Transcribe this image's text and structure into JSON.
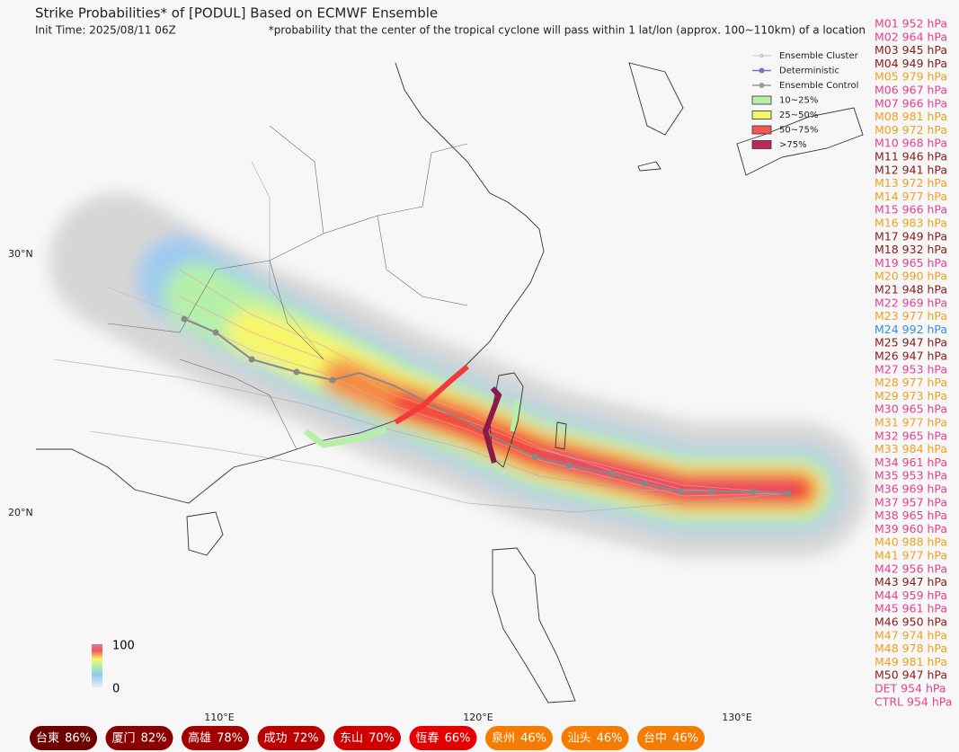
{
  "header": {
    "title": "Strike Probabilities* of [PODUL] Based on ECMWF Ensemble",
    "init_time": "Init Time: 2025/08/11 06Z",
    "note": "*probability that the center of the tropical cyclone will pass within 1 lat/lon (approx. 100~110km) of a location"
  },
  "legend": {
    "items": [
      {
        "label": "Ensemble Cluster",
        "kind": "cluster"
      },
      {
        "label": "Deterministic",
        "kind": "det"
      },
      {
        "label": "Ensemble Control",
        "kind": "ctrl"
      },
      {
        "label": "10~25%",
        "kind": "box",
        "color": "#b6f0a8"
      },
      {
        "label": "25~50%",
        "kind": "box",
        "color": "#f6f66a"
      },
      {
        "label": "50~75%",
        "kind": "box",
        "color": "#f25a50"
      },
      {
        "label": ">75%",
        "kind": "box",
        "color": "#c0285a"
      }
    ]
  },
  "axes": {
    "lat_labels": [
      "30°N",
      "20°N"
    ],
    "lon_labels": [
      "110°E",
      "120°E",
      "130°E"
    ]
  },
  "colorbar": {
    "max_label": "100",
    "min_label": "0"
  },
  "members": [
    {
      "label": "M01 952 hPa",
      "color": "#e8408f"
    },
    {
      "label": "M02 964 hPa",
      "color": "#e8408f"
    },
    {
      "label": "M03 945 hPa",
      "color": "#8b1a1a"
    },
    {
      "label": "M04 949 hPa",
      "color": "#8b1a1a"
    },
    {
      "label": "M05 979 hPa",
      "color": "#f0a020"
    },
    {
      "label": "M06 967 hPa",
      "color": "#e8408f"
    },
    {
      "label": "M07 966 hPa",
      "color": "#e8408f"
    },
    {
      "label": "M08 981 hPa",
      "color": "#f0a020"
    },
    {
      "label": "M09 972 hPa",
      "color": "#f0a020"
    },
    {
      "label": "M10 968 hPa",
      "color": "#e8408f"
    },
    {
      "label": "M11 946 hPa",
      "color": "#8b1a1a"
    },
    {
      "label": "M12 941 hPa",
      "color": "#8b1a1a"
    },
    {
      "label": "M13 972 hPa",
      "color": "#f0a020"
    },
    {
      "label": "M14 977 hPa",
      "color": "#f0a020"
    },
    {
      "label": "M15 966 hPa",
      "color": "#e8408f"
    },
    {
      "label": "M16 983 hPa",
      "color": "#f0a020"
    },
    {
      "label": "M17 949 hPa",
      "color": "#8b1a1a"
    },
    {
      "label": "M18 932 hPa",
      "color": "#8b1a1a"
    },
    {
      "label": "M19 965 hPa",
      "color": "#e8408f"
    },
    {
      "label": "M20 990 hPa",
      "color": "#f0a020"
    },
    {
      "label": "M21 948 hPa",
      "color": "#8b1a1a"
    },
    {
      "label": "M22 969 hPa",
      "color": "#e8408f"
    },
    {
      "label": "M23 977 hPa",
      "color": "#f0a020"
    },
    {
      "label": "M24 992 hPa",
      "color": "#3a8ee6"
    },
    {
      "label": "M25 947 hPa",
      "color": "#8b1a1a"
    },
    {
      "label": "M26 947 hPa",
      "color": "#8b1a1a"
    },
    {
      "label": "M27 953 hPa",
      "color": "#e8408f"
    },
    {
      "label": "M28 977 hPa",
      "color": "#f0a020"
    },
    {
      "label": "M29 973 hPa",
      "color": "#f0a020"
    },
    {
      "label": "M30 965 hPa",
      "color": "#e8408f"
    },
    {
      "label": "M31 977 hPa",
      "color": "#f0a020"
    },
    {
      "label": "M32 965 hPa",
      "color": "#e8408f"
    },
    {
      "label": "M33 984 hPa",
      "color": "#f0a020"
    },
    {
      "label": "M34 961 hPa",
      "color": "#e8408f"
    },
    {
      "label": "M35 953 hPa",
      "color": "#e8408f"
    },
    {
      "label": "M36 969 hPa",
      "color": "#e8408f"
    },
    {
      "label": "M37 957 hPa",
      "color": "#e8408f"
    },
    {
      "label": "M38 965 hPa",
      "color": "#e8408f"
    },
    {
      "label": "M39 960 hPa",
      "color": "#e8408f"
    },
    {
      "label": "M40 988 hPa",
      "color": "#f0a020"
    },
    {
      "label": "M41 977 hPa",
      "color": "#f0a020"
    },
    {
      "label": "M42 956 hPa",
      "color": "#e8408f"
    },
    {
      "label": "M43 947 hPa",
      "color": "#8b1a1a"
    },
    {
      "label": "M44 959 hPa",
      "color": "#e8408f"
    },
    {
      "label": "M45 961 hPa",
      "color": "#e8408f"
    },
    {
      "label": "M46 950 hPa",
      "color": "#8b1a1a"
    },
    {
      "label": "M47 974 hPa",
      "color": "#f0a020"
    },
    {
      "label": "M48 978 hPa",
      "color": "#f0a020"
    },
    {
      "label": "M49 981 hPa",
      "color": "#f0a020"
    },
    {
      "label": "M50 947 hPa",
      "color": "#8b1a1a"
    },
    {
      "label": "DET 954 hPa",
      "color": "#e8408f"
    },
    {
      "label": "CTRL 954 hPa",
      "color": "#e8408f"
    }
  ],
  "locations": [
    {
      "name": "台東",
      "value": "86%",
      "color": "#6e0000"
    },
    {
      "name": "厦门",
      "value": "82%",
      "color": "#8a0000"
    },
    {
      "name": "高雄",
      "value": "78%",
      "color": "#a30000"
    },
    {
      "name": "成功",
      "value": "72%",
      "color": "#bb0000"
    },
    {
      "name": "东山",
      "value": "70%",
      "color": "#d10000"
    },
    {
      "name": "恆春",
      "value": "66%",
      "color": "#e40000"
    },
    {
      "name": "泉州",
      "value": "46%",
      "color": "#f57c00"
    },
    {
      "name": "汕头",
      "value": "46%",
      "color": "#f57c00"
    },
    {
      "name": "台中",
      "value": "46%",
      "color": "#f57c00"
    }
  ]
}
